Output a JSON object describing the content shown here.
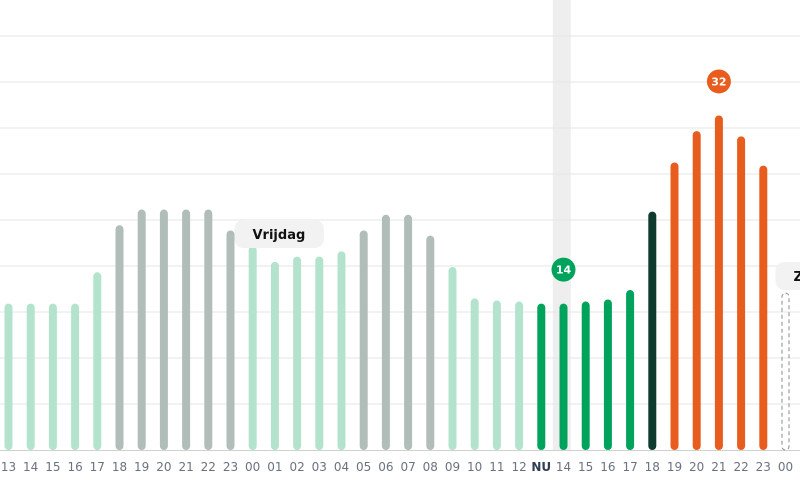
{
  "chart_data": {
    "type": "bar",
    "categories": [
      "13",
      "14",
      "15",
      "16",
      "17",
      "18",
      "19",
      "20",
      "21",
      "22",
      "23",
      "00",
      "01",
      "02",
      "03",
      "04",
      "05",
      "06",
      "07",
      "08",
      "09",
      "10",
      "11",
      "12",
      "NU",
      "14",
      "15",
      "16",
      "17",
      "18",
      "19",
      "20",
      "21",
      "22",
      "23",
      "00"
    ],
    "values": [
      14,
      14,
      14,
      14,
      17,
      21.5,
      23,
      23,
      23,
      23,
      21,
      19.5,
      18,
      18.5,
      18.5,
      19,
      21,
      22.5,
      22.5,
      20.5,
      17.5,
      14.5,
      14.3,
      14.2,
      14,
      14,
      14.2,
      14.4,
      15.3,
      22.8,
      27.5,
      30.5,
      32,
      30,
      27.2,
      15
    ],
    "kind": [
      "past",
      "past",
      "past",
      "past",
      "past",
      "gray",
      "gray",
      "gray",
      "gray",
      "gray",
      "gray",
      "past",
      "past",
      "past",
      "past",
      "past",
      "gray",
      "gray",
      "gray",
      "gray",
      "past",
      "past",
      "past",
      "past",
      "current",
      "current",
      "current",
      "current",
      "current",
      "dark",
      "peak",
      "peak",
      "peak",
      "peak",
      "peak",
      "placeholder"
    ],
    "ylim": [
      0,
      44
    ],
    "grid": true,
    "now_index": 24,
    "callouts": [
      {
        "index": 24,
        "label": "14",
        "color": "#00a35c"
      },
      {
        "index": 32,
        "label": "32",
        "color": "#e85d1e"
      }
    ],
    "day_labels": [
      {
        "text": "Vrijdag",
        "index": 10
      },
      {
        "text": "Zaterdag",
        "index": 35
      }
    ],
    "colors": {
      "past": "#b3e3cd",
      "gray": "#b0bdb8",
      "current": "#00a35c",
      "dark": "#0e3b2e",
      "peak": "#e85d1e",
      "placeholder": "#9aa0a6",
      "grid": "#e6e6e6",
      "now_band": "#eeeeee"
    }
  }
}
